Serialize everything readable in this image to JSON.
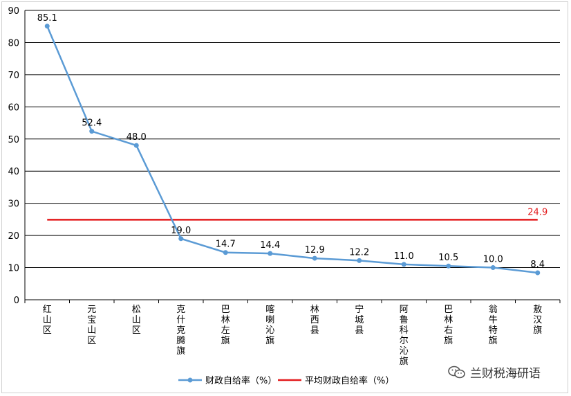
{
  "chart_data": {
    "type": "line",
    "categories": [
      "红山区",
      "元宝山区",
      "松山区",
      "克什克腾旗",
      "巴林左旗",
      "喀喇沁旗",
      "林西县",
      "宁城县",
      "阿鲁科尔沁旗",
      "巴林右旗",
      "翁牛特旗",
      "敖汉旗"
    ],
    "series": [
      {
        "name": "财政自给率（%）",
        "values": [
          85.1,
          52.4,
          48.0,
          19.0,
          14.7,
          14.4,
          12.9,
          12.2,
          11.0,
          10.5,
          10.0,
          8.4
        ],
        "labels": [
          "85.1",
          "52.4",
          "48.0",
          "19.0",
          "14.7",
          "14.4",
          "12.9",
          "12.2",
          "11.0",
          "10.5",
          "10.0",
          "8.4"
        ],
        "color": "#5b9bd5"
      },
      {
        "name": "平均财政自给率（%）",
        "value": 24.9,
        "label": "24.9",
        "color": "#e31a1c"
      }
    ],
    "ylim": [
      0,
      90
    ],
    "yticks": [
      0,
      10,
      20,
      30,
      40,
      50,
      60,
      70,
      80,
      90
    ],
    "grid": true,
    "legend": "bottom-center"
  },
  "watermark": {
    "text": "兰财税海研语",
    "icon": "wechat-icon"
  }
}
